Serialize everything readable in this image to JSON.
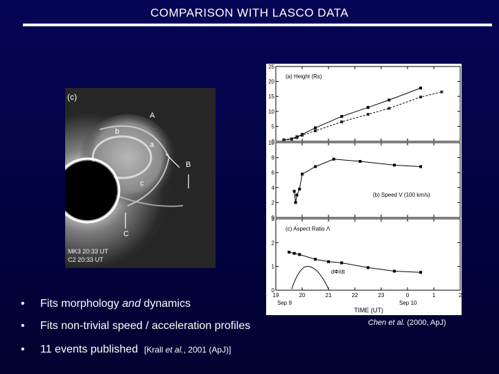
{
  "slide": {
    "title": "COMPARISON  WITH  LASCO  DATA"
  },
  "image": {
    "panel_label": "(c)",
    "labels": {
      "A": "A",
      "b": "b",
      "a": "a",
      "B": "B",
      "c": "c",
      "C": "C"
    },
    "time_line1": "MK3   20:33 UT",
    "time_line2": "C2   20:33 UT"
  },
  "plot": {
    "panels": [
      {
        "label": "(a)  Height (Rs)"
      },
      {
        "label": "(b)  Speed  V (100 km/s)"
      },
      {
        "label": "(c)  Aspect Ratio  Λ"
      }
    ],
    "curve_label": "dΦ/dt",
    "xlabel": "TIME (UT)",
    "date_left": "Sep 9",
    "date_right": "Sep 10"
  },
  "chart_data": [
    {
      "type": "scatter",
      "title": "(a)  Height (Rs)",
      "x_ticks": [
        19,
        20,
        21,
        22,
        23,
        0,
        1,
        2
      ],
      "y_ticks": [
        0,
        5,
        10,
        15,
        20,
        25
      ],
      "ylim": [
        0,
        25
      ],
      "series": [
        {
          "x": [
            19.3,
            19.6,
            19.8,
            20.0,
            20.5,
            21.5,
            22.5,
            23.3,
            24.5
          ],
          "y": [
            0.5,
            0.8,
            1.5,
            2.3,
            4.5,
            8.3,
            11.3,
            13.8,
            17.8
          ]
        },
        {
          "x": [
            19.3,
            19.6,
            19.8,
            20.0,
            20.5,
            21.5,
            22.5,
            23.3,
            24.5,
            25.3
          ],
          "y": [
            0.4,
            0.7,
            1.2,
            2.0,
            3.5,
            6.5,
            9.0,
            11.0,
            14.8,
            16.5
          ]
        }
      ]
    },
    {
      "type": "scatter",
      "title": "(b)  Speed  V (100 km/s)",
      "x_ticks": [
        19,
        20,
        21,
        22,
        23,
        0,
        1,
        2
      ],
      "y_ticks": [
        0,
        2,
        4,
        6,
        8,
        10
      ],
      "ylim": [
        0,
        10
      ],
      "series": [
        {
          "x": [
            19.7,
            19.75,
            19.8,
            19.9,
            20.0,
            20.5,
            21.2,
            22.2,
            23.5,
            24.5
          ],
          "y": [
            3.5,
            2.0,
            3.0,
            3.8,
            5.8,
            6.8,
            7.8,
            7.5,
            7.0,
            6.8
          ]
        }
      ]
    },
    {
      "type": "line",
      "title": "(c)  Aspect Ratio  Λ",
      "x_ticks": [
        19,
        20,
        21,
        22,
        23,
        0,
        1,
        2
      ],
      "y_ticks": [
        0,
        1,
        2,
        3
      ],
      "ylim": [
        0,
        3
      ],
      "series": [
        {
          "x": [
            19.5,
            19.7,
            19.9,
            20.5,
            21.0,
            21.5,
            22.5,
            23.5,
            24.5
          ],
          "y": [
            1.6,
            1.55,
            1.5,
            1.3,
            1.2,
            1.15,
            0.95,
            0.8,
            0.75
          ]
        }
      ]
    }
  ],
  "bullets": [
    {
      "marker": "•",
      "text_before": "Fits morphology ",
      "text_italic": "and",
      "text_after": " dynamics"
    },
    {
      "marker": "•",
      "text": "Fits non-trivial speed / acceleration profiles"
    },
    {
      "marker": "•",
      "text": "11 events published",
      "cite_pre": "[Krall ",
      "cite_italic": "et al.",
      "cite_post": ", 2001 (ApJ)]"
    }
  ],
  "credit": {
    "author_italic": "Chen et al.",
    "rest": " (2000, ApJ)"
  }
}
